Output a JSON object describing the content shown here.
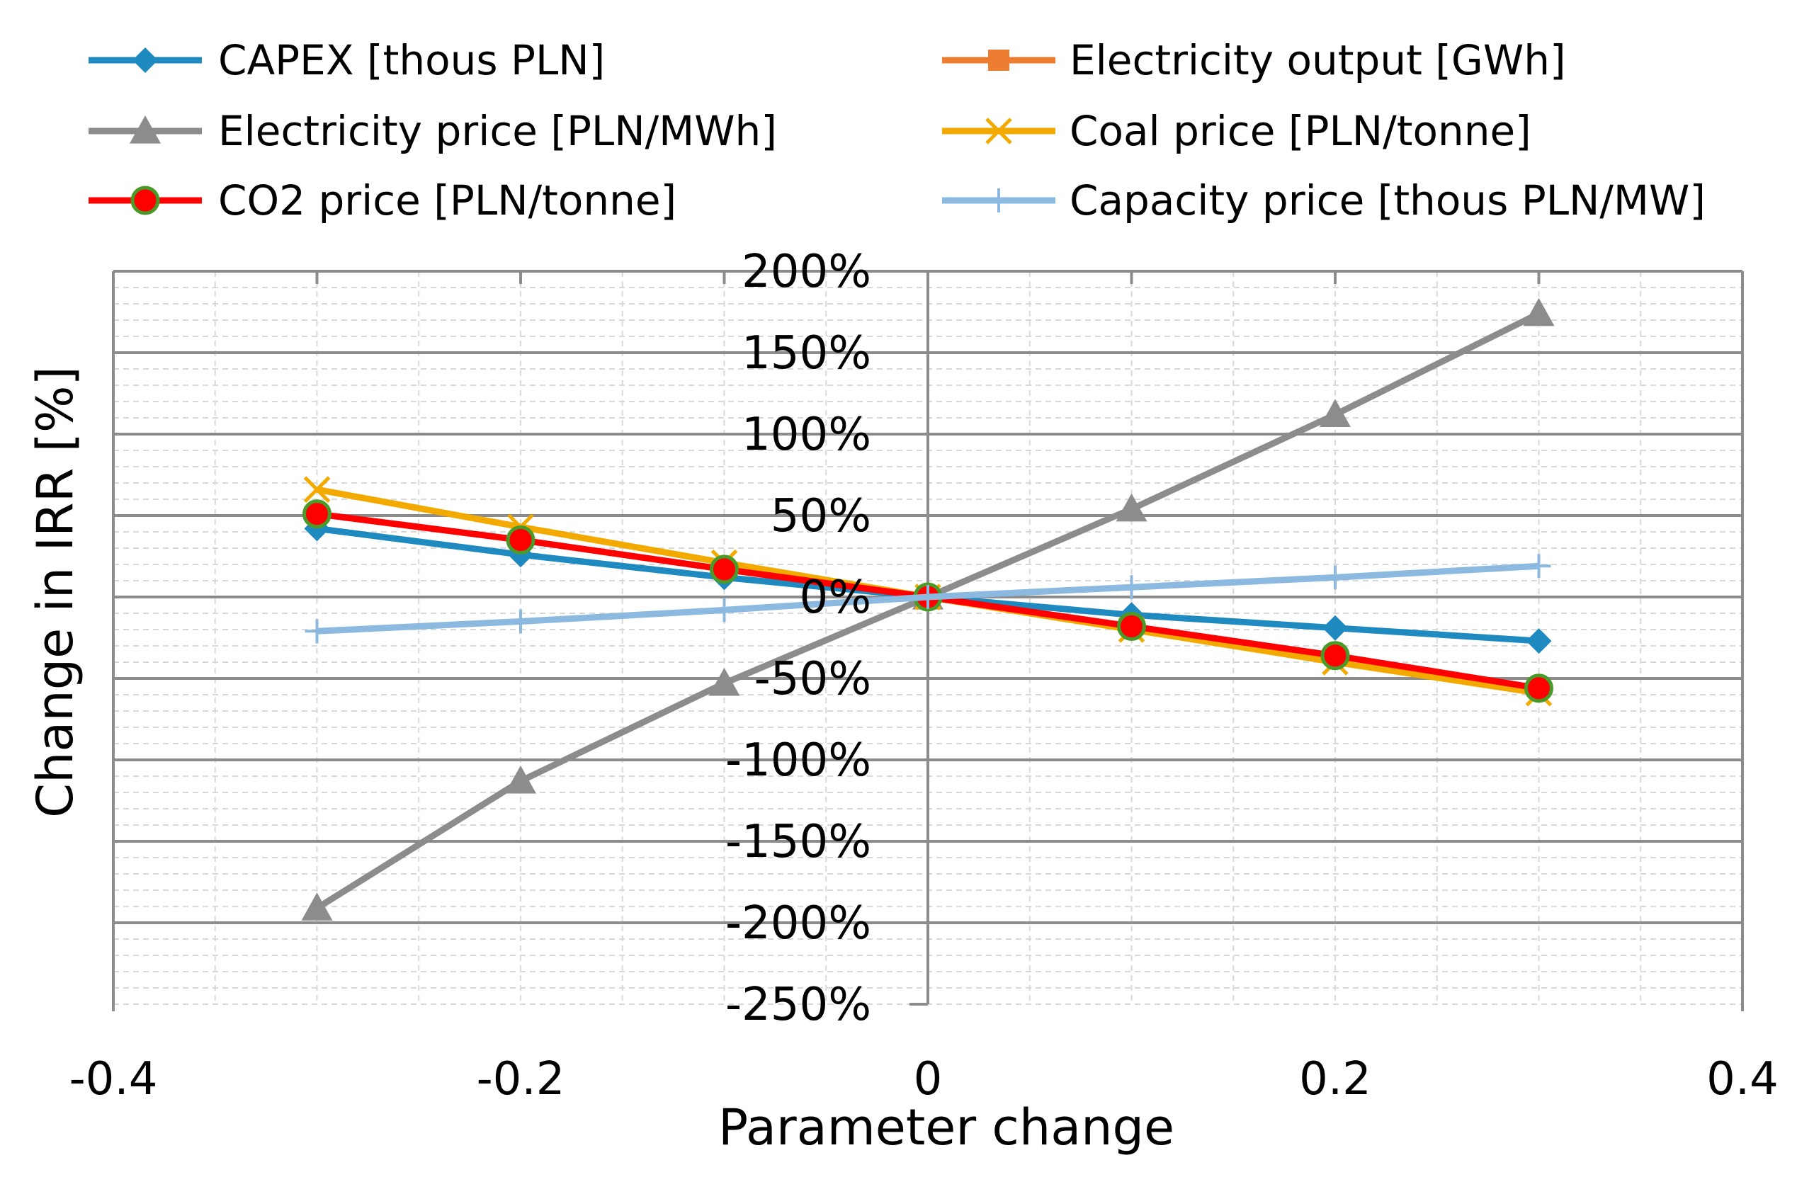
{
  "chart_data": {
    "type": "line",
    "title": "",
    "xlabel": "Parameter change",
    "ylabel": "Change in IRR [%]",
    "xlim": [
      -0.4,
      0.4
    ],
    "ylim": [
      -250,
      200
    ],
    "x_ticks": [
      -0.4,
      -0.2,
      0,
      0.2,
      0.4
    ],
    "x_tick_labels": [
      "-0.4",
      "-0.2",
      "0",
      "0.2",
      "0.4"
    ],
    "y_ticks": [
      200,
      150,
      100,
      50,
      0,
      -50,
      -100,
      -150,
      -200,
      -250
    ],
    "y_tick_labels": [
      "200%",
      "150%",
      "100%",
      "50%",
      "0%",
      "-50%",
      "-100%",
      "-150%",
      "-200%",
      "-250%"
    ],
    "grid": true,
    "legend_position": "top",
    "x": [
      -0.3,
      -0.2,
      -0.1,
      0,
      0.1,
      0.2,
      0.3
    ],
    "series": [
      {
        "name": "CAPEX [thous PLN]",
        "color": "#1F8AC0",
        "marker": "diamond",
        "values": [
          42,
          26,
          12,
          0,
          -11,
          -19,
          -27
        ]
      },
      {
        "name": "Electricity output [GWh]",
        "color": "#ED7D31",
        "marker": "square",
        "values": [
          null,
          null,
          null,
          0,
          null,
          null,
          null
        ]
      },
      {
        "name": "Electricity price [PLN/MWh]",
        "color": "#8C8C8C",
        "marker": "triangle",
        "values": [
          -191,
          -113,
          -53,
          0,
          54,
          112,
          174
        ]
      },
      {
        "name": "Coal price [PLN/tonne]",
        "color": "#F2A900",
        "marker": "x",
        "values": [
          66,
          43,
          21,
          0,
          -20,
          -40,
          -59
        ]
      },
      {
        "name": "CO2 price [PLN/tonne]",
        "color": "#FF0000",
        "marker": "circle",
        "values": [
          51,
          35,
          17,
          0,
          -18,
          -36,
          -56
        ]
      },
      {
        "name": "Capacity price [thous PLN/MW]",
        "color": "#8CB9E0",
        "marker": "plus",
        "values": [
          -21,
          -15,
          -8,
          0,
          6,
          12,
          19
        ]
      }
    ]
  }
}
